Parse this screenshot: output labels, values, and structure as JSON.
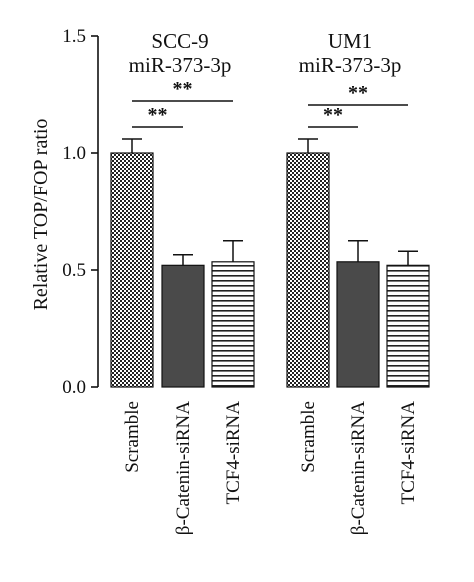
{
  "chart_data": {
    "type": "bar",
    "ylabel": "Relative TOP/FOP ratio",
    "ylim": [
      0.0,
      1.5
    ],
    "yticks": [
      "0.0",
      "0.5",
      "1.0",
      "1.5"
    ],
    "grid": false,
    "legend": "none",
    "groups": [
      {
        "title_line1": "SCC-9",
        "title_line2": "miR-373-3p",
        "bars": [
          {
            "category": "Scramble",
            "value": 1.0,
            "error": 0.06,
            "fill": "crosshatch"
          },
          {
            "category": "β-Catenin-siRNA",
            "value": 0.52,
            "error": 0.045,
            "fill": "solid-dark"
          },
          {
            "category": "TCF4-siRNA",
            "value": 0.535,
            "error": 0.09,
            "fill": "horizontal-stripes"
          }
        ],
        "significance": [
          {
            "from": 0,
            "to": 1,
            "label": "**"
          },
          {
            "from": 0,
            "to": 2,
            "label": "**"
          }
        ]
      },
      {
        "title_line1": "UM1",
        "title_line2": "miR-373-3p",
        "bars": [
          {
            "category": "Scramble",
            "value": 1.0,
            "error": 0.06,
            "fill": "crosshatch"
          },
          {
            "category": "β-Catenin-siRNA",
            "value": 0.535,
            "error": 0.09,
            "fill": "solid-dark"
          },
          {
            "category": "TCF4-siRNA",
            "value": 0.52,
            "error": 0.06,
            "fill": "horizontal-stripes"
          }
        ],
        "significance": [
          {
            "from": 0,
            "to": 1,
            "label": "**"
          },
          {
            "from": 0,
            "to": 2,
            "label": "**"
          }
        ]
      }
    ]
  },
  "colors": {
    "axis": "#111111",
    "bar_dark": "#4a4a4a",
    "bar_outline": "#111111",
    "hatch": "#111111",
    "background": "#ffffff"
  }
}
